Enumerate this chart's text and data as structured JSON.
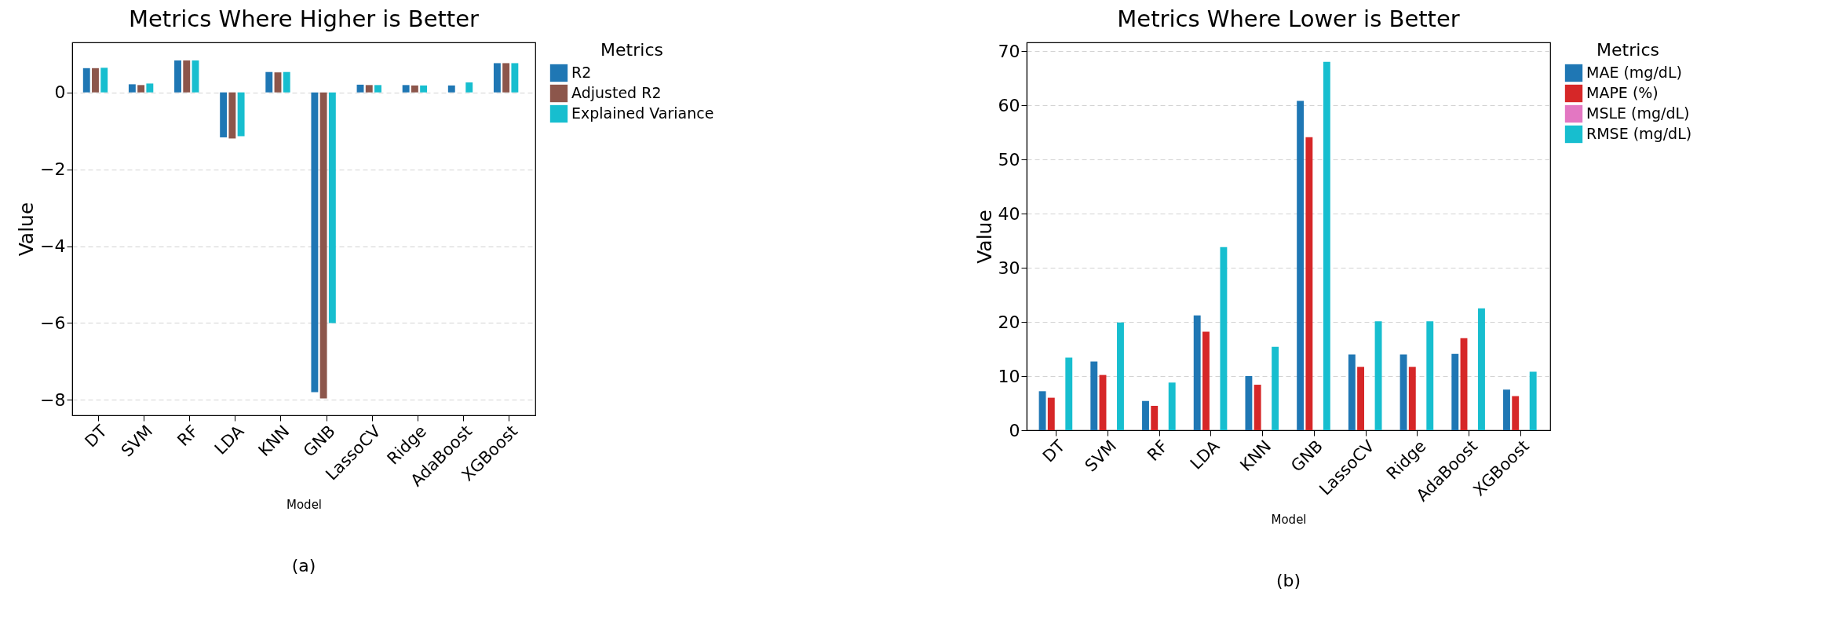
{
  "chart_data": [
    {
      "type": "bar",
      "title": "Metrics Where Higher is Better",
      "xlabel": "Model",
      "ylabel": "Value",
      "legend_title": "Metrics",
      "legend": "right",
      "grid": "y",
      "categories": [
        "DT",
        "SVM",
        "RF",
        "LDA",
        "KNN",
        "GNB",
        "LassoCV",
        "Ridge",
        "AdaBoost",
        "XGBoost"
      ],
      "series": [
        {
          "name": "R2",
          "color": "#1f77b4",
          "values": [
            0.63,
            0.21,
            0.83,
            -1.17,
            0.53,
            -7.8,
            0.2,
            0.19,
            0.18,
            0.76
          ]
        },
        {
          "name": "Adjusted R2",
          "color": "#8c564b",
          "values": [
            0.63,
            0.19,
            0.83,
            -1.2,
            0.52,
            -7.96,
            0.19,
            0.18,
            null,
            0.76
          ]
        },
        {
          "name": "Explained Variance",
          "color": "#17becf",
          "values": [
            0.64,
            0.23,
            0.83,
            -1.14,
            0.53,
            -6.0,
            0.19,
            0.18,
            0.26,
            0.76
          ]
        }
      ],
      "ylim": [
        -8.4,
        1.3
      ],
      "yticks": [
        -8,
        -6,
        -4,
        -2,
        0
      ],
      "annotations": [
        "(a)"
      ]
    },
    {
      "type": "bar",
      "title": "Metrics Where Lower is Better",
      "xlabel": "Model",
      "ylabel": "Value",
      "legend_title": "Metrics",
      "legend": "right",
      "grid": "y",
      "categories": [
        "DT",
        "SVM",
        "RF",
        "LDA",
        "KNN",
        "GNB",
        "LassoCV",
        "Ridge",
        "AdaBoost",
        "XGBoost"
      ],
      "series": [
        {
          "name": "MAE (mg/dL)",
          "color": "#1f77b4",
          "values": [
            7.2,
            12.7,
            5.4,
            21.2,
            10.0,
            60.8,
            14.0,
            14.0,
            14.1,
            7.5
          ]
        },
        {
          "name": "MAPE (%)",
          "color": "#d62728",
          "values": [
            6.0,
            10.2,
            4.5,
            18.2,
            8.4,
            54.1,
            11.7,
            11.7,
            17.0,
            6.3
          ]
        },
        {
          "name": "MSLE (mg/dL)",
          "color": "#e377c2",
          "values": [
            0,
            0,
            0,
            0,
            0,
            0,
            0,
            0,
            0,
            0
          ]
        },
        {
          "name": "RMSE (mg/dL)",
          "color": "#17becf",
          "values": [
            13.4,
            19.9,
            8.8,
            33.8,
            15.4,
            68.0,
            20.1,
            20.1,
            22.5,
            10.8
          ]
        }
      ],
      "ylim": [
        0,
        71.6
      ],
      "yticks": [
        0,
        10,
        20,
        30,
        40,
        50,
        60,
        70
      ],
      "annotations": [
        "(b)"
      ]
    }
  ]
}
